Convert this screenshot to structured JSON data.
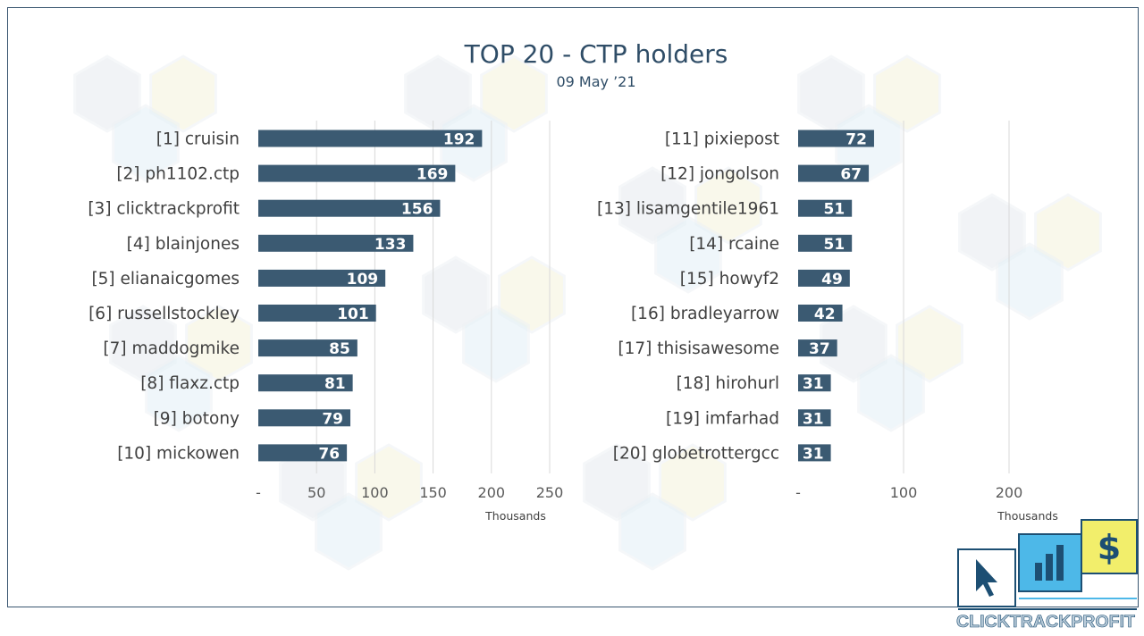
{
  "chart_data": [
    {
      "type": "bar",
      "orientation": "horizontal",
      "title": "TOP 20 - CTP holders",
      "subtitle": "09 May ’21",
      "xlabel": "Thousands",
      "xlim": [
        0,
        250
      ],
      "xticks": [
        "-",
        "50",
        "100",
        "150",
        "200",
        "250"
      ],
      "grid": true,
      "categories": [
        "[1] cruisin",
        "[2] ph1102.ctp",
        "[3] clicktrackprofit",
        "[4] blainjones",
        "[5] elianaicgomes",
        "[6] russellstockley",
        "[7] maddogmike",
        "[8] flaxz.ctp",
        "[9] botony",
        "[10] mickowen"
      ],
      "values": [
        192,
        169,
        156,
        133,
        109,
        101,
        85,
        81,
        79,
        76
      ],
      "bar_color": "#3b5a72"
    },
    {
      "type": "bar",
      "orientation": "horizontal",
      "xlabel": "Thousands",
      "xlim": [
        0,
        200
      ],
      "xticks": [
        "-",
        "100",
        "200"
      ],
      "grid": true,
      "categories": [
        "[11] pixiepost",
        "[12] jongolson",
        "[13] lisamgentile1961",
        "[14] rcaine",
        "[15] howyf2",
        "[16] bradleyarrow",
        "[17] thisisawesome",
        "[18] hirohurl",
        "[19] imfarhad",
        "[20] globetrottergcc"
      ],
      "values": [
        72,
        67,
        51,
        51,
        49,
        42,
        37,
        31,
        31,
        31
      ],
      "bar_color": "#3b5a72"
    }
  ],
  "logo": {
    "text": "CLICKTRACKPROFIT",
    "icons": [
      "cursor-icon",
      "bar-chart-icon",
      "dollar-icon"
    ],
    "dollar_glyph": "$",
    "colors": {
      "cursor": "#ffffff",
      "chart": "#4db8e8",
      "dollar": "#f2ee6b",
      "ink": "#1d4f73"
    }
  }
}
